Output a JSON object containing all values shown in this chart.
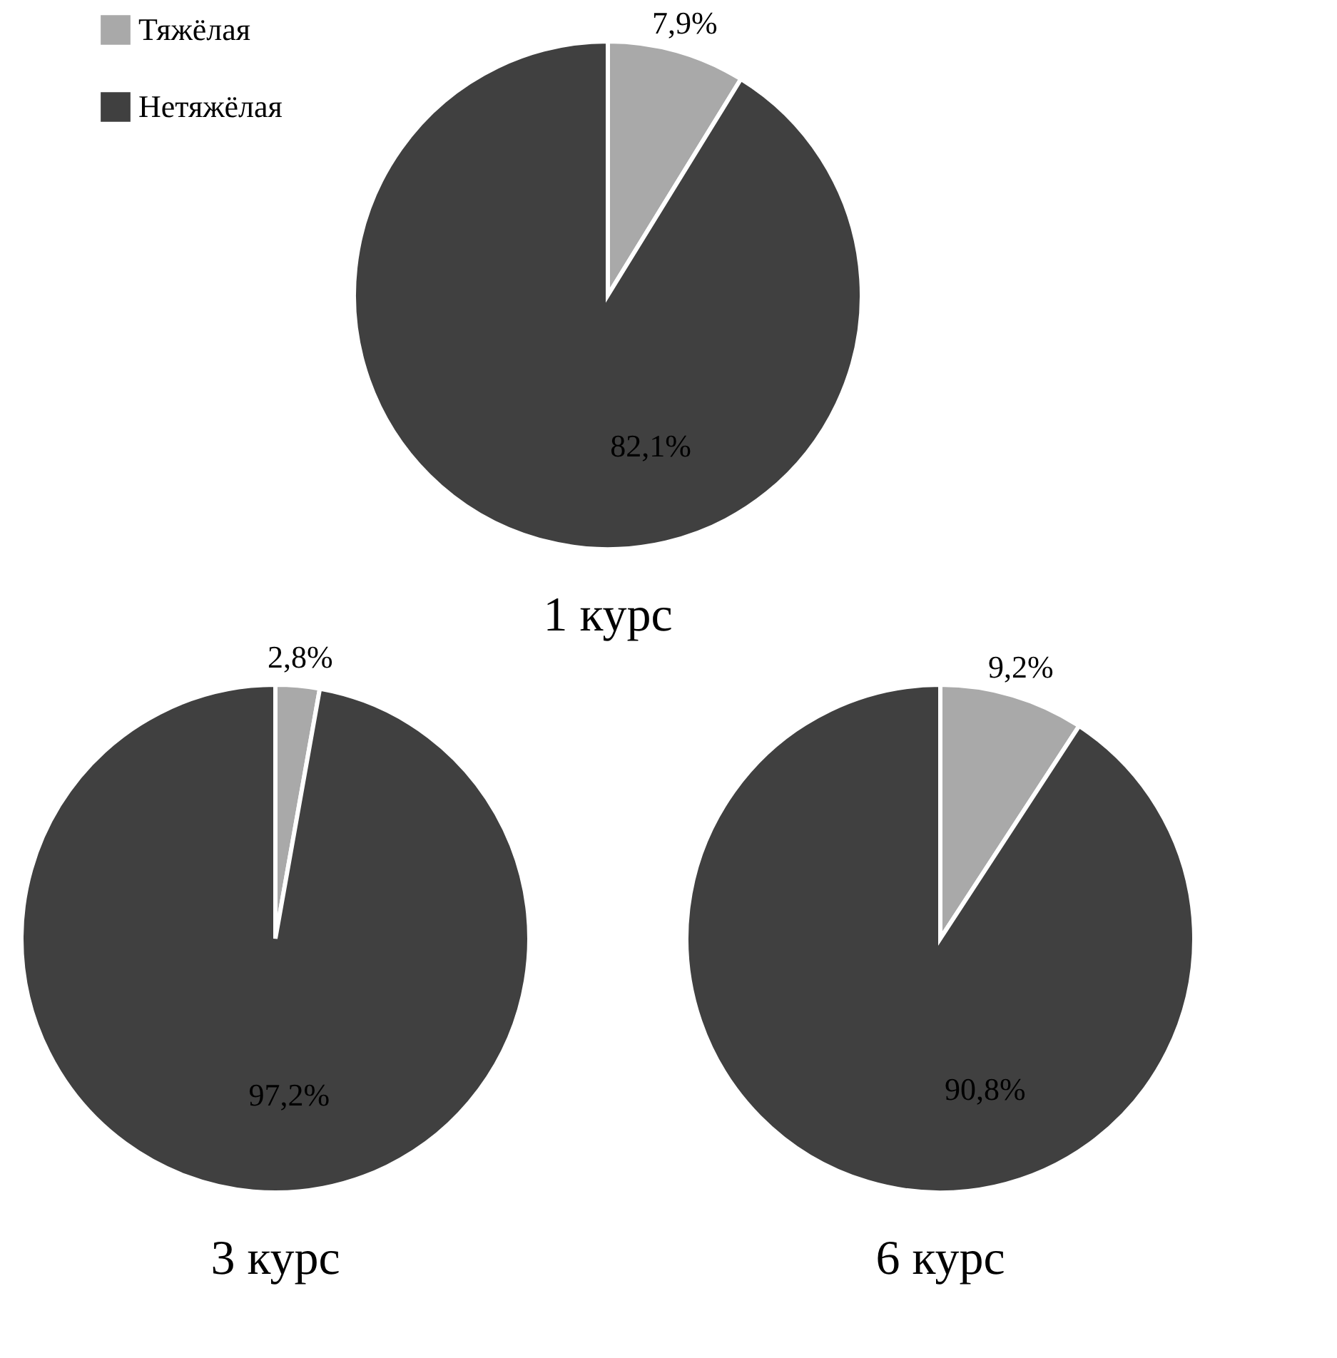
{
  "chart_data": [
    {
      "type": "pie",
      "title": "1 курс",
      "categories": [
        "Тяжёлая",
        "Нетяжёлая"
      ],
      "values": [
        7.9,
        82.1
      ],
      "colors": [
        "#a9a9a9",
        "#404040"
      ],
      "value_labels": [
        "7,9%",
        "82,1%"
      ],
      "legend": "left"
    },
    {
      "type": "pie",
      "title": "3 курс",
      "categories": [
        null,
        null
      ],
      "values": [
        2.8,
        97.2
      ],
      "colors": [
        "#a9a9a9",
        "#404040"
      ],
      "value_labels": [
        "2,8%",
        "97,2%"
      ]
    },
    {
      "type": "pie",
      "title": "6 курс",
      "categories": [
        null,
        null
      ],
      "values": [
        9.2,
        90.8
      ],
      "colors": [
        "#a9a9a9",
        "#404040"
      ],
      "value_labels": [
        "9,2%",
        "90,8%"
      ]
    }
  ]
}
